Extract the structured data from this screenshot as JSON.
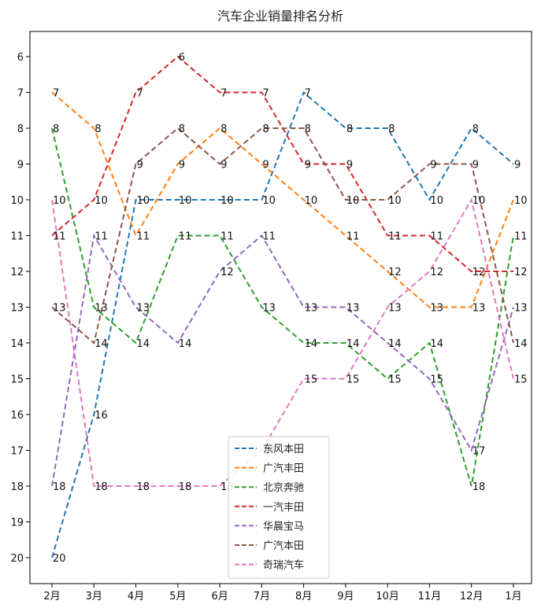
{
  "chart_data": {
    "type": "line",
    "title": "汽车企业销量排名分析",
    "xlabel": "",
    "ylabel": "",
    "categories": [
      "2月",
      "3月",
      "4月",
      "5月",
      "6月",
      "7月",
      "8月",
      "9月",
      "10月",
      "11月",
      "12月",
      "1月"
    ],
    "y_inverted": true,
    "ylim": [
      6,
      20
    ],
    "yticks": [
      6,
      7,
      8,
      9,
      10,
      11,
      12,
      13,
      14,
      15,
      16,
      17,
      18,
      19,
      20
    ],
    "grid": false,
    "legend_position": "lower-center",
    "line_style": "dashed",
    "series": [
      {
        "name": "东风本田",
        "color": "#1f77b4",
        "values": [
          20,
          16,
          10,
          10,
          10,
          10,
          7,
          8,
          8,
          10,
          8,
          9
        ]
      },
      {
        "name": "广汽丰田",
        "color": "#ff7f0e",
        "values": [
          7,
          8,
          11,
          9,
          8,
          9,
          10,
          11,
          12,
          13,
          13,
          10
        ]
      },
      {
        "name": "北京奔驰",
        "color": "#2ca02c",
        "values": [
          8,
          13,
          14,
          11,
          11,
          13,
          14,
          14,
          15,
          14,
          18,
          11
        ]
      },
      {
        "name": "一汽丰田",
        "color": "#d62728",
        "values": [
          11,
          10,
          7,
          6,
          7,
          7,
          9,
          9,
          11,
          11,
          12,
          12
        ]
      },
      {
        "name": "华晨宝马",
        "color": "#9467bd",
        "values": [
          18,
          11,
          13,
          14,
          12,
          11,
          13,
          13,
          14,
          15,
          17,
          13
        ]
      },
      {
        "name": "广汽本田",
        "color": "#8c564b",
        "values": [
          13,
          14,
          9,
          8,
          9,
          8,
          8,
          10,
          10,
          9,
          9,
          14
        ]
      },
      {
        "name": "奇瑞汽车",
        "color": "#e377c2",
        "values": [
          10,
          18,
          18,
          18,
          18,
          17,
          15,
          15,
          13,
          12,
          10,
          15
        ]
      }
    ]
  }
}
